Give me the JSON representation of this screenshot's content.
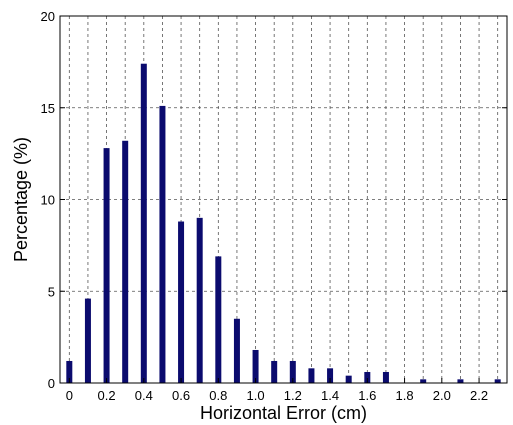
{
  "chart_data": {
    "type": "bar",
    "title": "",
    "xlabel": "Horizontal Error (cm)",
    "ylabel": "Percentage (%)",
    "x": [
      0.0,
      0.1,
      0.2,
      0.3,
      0.4,
      0.5,
      0.6,
      0.7,
      0.8,
      0.9,
      1.0,
      1.1,
      1.2,
      1.3,
      1.4,
      1.5,
      1.6,
      1.7,
      1.8,
      1.9,
      2.0,
      2.1,
      2.2,
      2.3
    ],
    "values": [
      1.2,
      4.6,
      12.8,
      13.2,
      17.4,
      15.1,
      8.8,
      9.0,
      6.9,
      3.5,
      1.8,
      1.2,
      1.2,
      0.8,
      0.8,
      0.4,
      0.6,
      0.6,
      0.0,
      0.2,
      0.0,
      0.2,
      0.0,
      0.2
    ],
    "xlim": [
      -0.05,
      2.35
    ],
    "ylim": [
      0,
      20
    ],
    "xticks": [
      0.0,
      0.2,
      0.4,
      0.6,
      0.8,
      1.0,
      1.2,
      1.4,
      1.6,
      1.8,
      2.0,
      2.2
    ],
    "xtick_labels": [
      "0",
      "0.2",
      "0.4",
      "0.6",
      "0.8",
      "1.0",
      "1.2",
      "1.4",
      "1.6",
      "1.8",
      "2.0",
      "2.2"
    ],
    "yticks": [
      0,
      5,
      10,
      15,
      20
    ],
    "ytick_labels": [
      "0",
      "5",
      "10",
      "15",
      "20"
    ],
    "x_grid_every": 0.1,
    "grid": true,
    "bar_color": "#0b0b6e"
  }
}
